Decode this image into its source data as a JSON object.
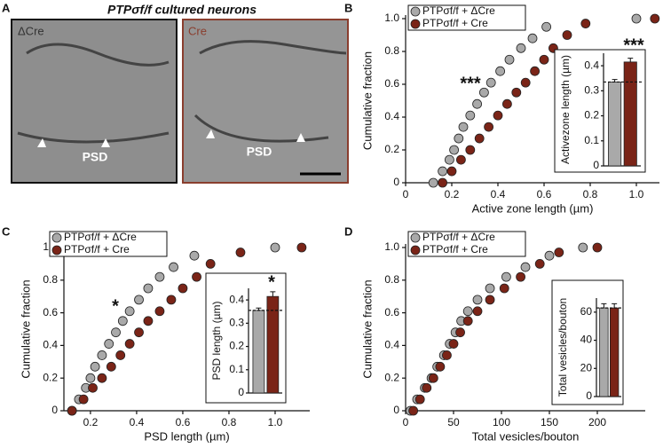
{
  "figure": {
    "title": "PTPσf/f cultured neurons",
    "panel_label": "A",
    "images": [
      {
        "label": "ΔCre",
        "annotation": "PSD"
      },
      {
        "label": "Cre",
        "annotation": "PSD"
      }
    ]
  },
  "chart_data": [
    {
      "type": "scatter",
      "panel": "B",
      "xlabel": "Active zone length (µm)",
      "ylabel": "Cumulative fraction",
      "xlim": [
        0,
        1.1
      ],
      "ylim": [
        0,
        1
      ],
      "xticks": [
        0,
        0.2,
        0.4,
        0.6,
        0.8,
        {
          "value": 1,
          "label": "1.0"
        }
      ],
      "yticks": [
        0,
        0.2,
        0.4,
        0.6,
        0.8,
        {
          "value": 1,
          "label": "1.0"
        }
      ],
      "legend": "upper left",
      "annotation": "***",
      "series": [
        {
          "name": "PTPσf/f + ΔCre",
          "color": "#a9a9a9",
          "x": [
            0.12,
            0.16,
            0.19,
            0.21,
            0.23,
            0.25,
            0.28,
            0.31,
            0.34,
            0.37,
            0.41,
            0.45,
            0.5,
            0.55,
            0.61,
            1.0
          ],
          "values": [
            0,
            0.07,
            0.14,
            0.2,
            0.27,
            0.34,
            0.41,
            0.48,
            0.55,
            0.61,
            0.68,
            0.75,
            0.82,
            0.88,
            0.95,
            1.0
          ]
        },
        {
          "name": "PTPσf/f + Cre",
          "color": "#7a2417",
          "x": [
            0.16,
            0.2,
            0.24,
            0.28,
            0.32,
            0.36,
            0.4,
            0.44,
            0.48,
            0.52,
            0.56,
            0.6,
            0.64,
            0.7,
            0.78,
            1.08
          ],
          "values": [
            0,
            0.07,
            0.14,
            0.2,
            0.27,
            0.34,
            0.41,
            0.48,
            0.55,
            0.61,
            0.68,
            0.75,
            0.82,
            0.9,
            0.97,
            1.0
          ]
        }
      ],
      "inset": {
        "type": "bar",
        "ylabel": "Activezone length (µm)",
        "categories": [
          null,
          null
        ],
        "values": [
          0.335,
          0.415
        ],
        "errors": [
          0.01,
          0.015
        ],
        "colors": [
          "#a9a9a9",
          "#7a2417"
        ],
        "ylim": [
          0,
          0.45
        ],
        "yticks": [
          0,
          0.1,
          0.2,
          0.3,
          0.4
        ],
        "annotation": "***",
        "reference_line": true
      }
    },
    {
      "type": "scatter",
      "panel": "C",
      "xlabel": "PSD length (µm)",
      "ylabel": "Cumulative fraction",
      "xlim": [
        0.085,
        1.15
      ],
      "ylim": [
        0,
        1
      ],
      "xticks": [
        0.2,
        0.4,
        0.6,
        0.8,
        {
          "value": 1,
          "label": "1.0"
        }
      ],
      "yticks": [
        0,
        0.2,
        0.4,
        0.6,
        0.8,
        {
          "value": 1,
          "label": "1.0"
        }
      ],
      "legend": "upper left",
      "annotation": "*",
      "series": [
        {
          "name": "PTPσf/f + ΔCre",
          "color": "#a9a9a9",
          "x": [
            0.12,
            0.15,
            0.18,
            0.2,
            0.22,
            0.25,
            0.28,
            0.31,
            0.34,
            0.37,
            0.41,
            0.45,
            0.5,
            0.56,
            0.65,
            1.0
          ],
          "values": [
            0,
            0.07,
            0.14,
            0.2,
            0.27,
            0.34,
            0.41,
            0.48,
            0.55,
            0.61,
            0.68,
            0.75,
            0.82,
            0.88,
            0.95,
            1.0
          ]
        },
        {
          "name": "PTPσf/f + Cre",
          "color": "#7a2417",
          "x": [
            0.12,
            0.17,
            0.21,
            0.25,
            0.29,
            0.33,
            0.37,
            0.41,
            0.45,
            0.5,
            0.55,
            0.6,
            0.66,
            0.72,
            0.85,
            1.115
          ],
          "values": [
            0,
            0.07,
            0.14,
            0.2,
            0.27,
            0.34,
            0.41,
            0.48,
            0.55,
            0.61,
            0.68,
            0.75,
            0.82,
            0.9,
            0.97,
            1.0
          ]
        }
      ],
      "inset": {
        "type": "bar",
        "ylabel": "PSD length (µm)",
        "categories": [
          null,
          null
        ],
        "values": [
          0.355,
          0.415
        ],
        "errors": [
          0.01,
          0.02
        ],
        "colors": [
          "#a9a9a9",
          "#7a2417"
        ],
        "ylim": [
          0,
          0.45
        ],
        "yticks": [
          0,
          0.1,
          0.2,
          0.3,
          0.4
        ],
        "annotation": "*",
        "reference_line": true
      }
    },
    {
      "type": "scatter",
      "panel": "D",
      "xlabel": "Total vesicles/bouton",
      "ylabel": "Cumulative fraction",
      "xlim": [
        0,
        250
      ],
      "ylim": [
        0,
        1
      ],
      "xticks": [
        0,
        50,
        100,
        150,
        200
      ],
      "yticks": [
        0,
        0.2,
        0.4,
        0.6,
        0.8,
        {
          "value": 1,
          "label": "1.0"
        }
      ],
      "legend": "upper left",
      "series": [
        {
          "name": "PTPσf/f + ΔCre",
          "color": "#a9a9a9",
          "x": [
            5,
            12,
            20,
            27,
            33,
            40,
            46,
            52,
            58,
            65,
            75,
            88,
            105,
            125,
            150,
            185
          ],
          "values": [
            0,
            0.07,
            0.14,
            0.2,
            0.27,
            0.34,
            0.41,
            0.48,
            0.55,
            0.61,
            0.68,
            0.75,
            0.82,
            0.88,
            0.95,
            1.0
          ]
        },
        {
          "name": "PTPσf/f + Cre",
          "color": "#7a2417",
          "x": [
            8,
            15,
            22,
            29,
            36,
            43,
            50,
            57,
            65,
            75,
            88,
            103,
            120,
            140,
            160,
            200
          ],
          "values": [
            0,
            0.07,
            0.14,
            0.2,
            0.27,
            0.34,
            0.41,
            0.48,
            0.55,
            0.61,
            0.68,
            0.75,
            0.82,
            0.9,
            0.97,
            1.0
          ]
        }
      ],
      "inset": {
        "type": "bar",
        "ylabel": "Total vesicles/bouton",
        "categories": [
          null,
          null
        ],
        "values": [
          63,
          63
        ],
        "errors": [
          3,
          3
        ],
        "colors": [
          "#a9a9a9",
          "#7a2417"
        ],
        "ylim": [
          0,
          70
        ],
        "yticks": [
          0,
          20,
          40,
          60
        ],
        "reference_line": true
      }
    }
  ]
}
